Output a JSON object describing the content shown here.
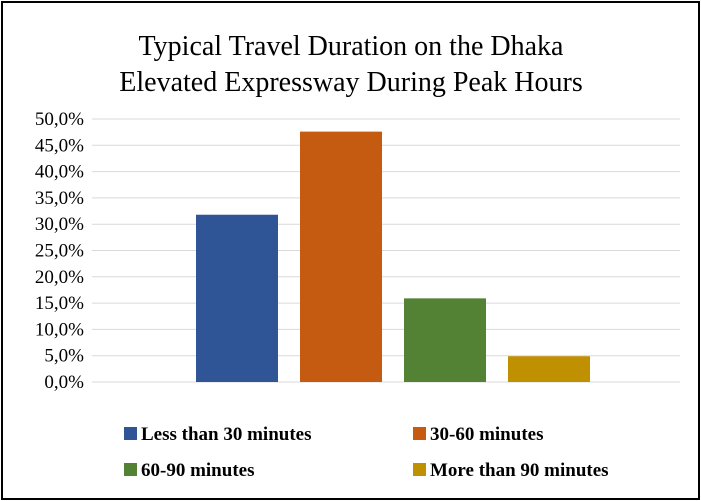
{
  "chart_data": {
    "type": "bar",
    "title_lines": [
      "Typical Travel Duration on the Dhaka",
      "Elevated Expressway During Peak Hours"
    ],
    "categories": [
      "Less than 30 minutes",
      "30-60 minutes",
      "60-90 minutes",
      "More than 90 minutes"
    ],
    "values": [
      31.8,
      47.6,
      15.9,
      4.9
    ],
    "colors": [
      "#2f5597",
      "#c55a11",
      "#548235",
      "#bf9000"
    ],
    "ylim": [
      0,
      50
    ],
    "y_ticks": [
      0,
      5,
      10,
      15,
      20,
      25,
      30,
      35,
      40,
      45,
      50
    ],
    "y_tick_labels": [
      "0,0%",
      "5,0%",
      "10,0%",
      "15,0%",
      "20,0%",
      "25,0%",
      "30,0%",
      "35,0%",
      "40,0%",
      "45,0%",
      "50,0%"
    ],
    "grid": true,
    "legend_position": "bottom",
    "gridline_color": "#d9d9d9"
  }
}
